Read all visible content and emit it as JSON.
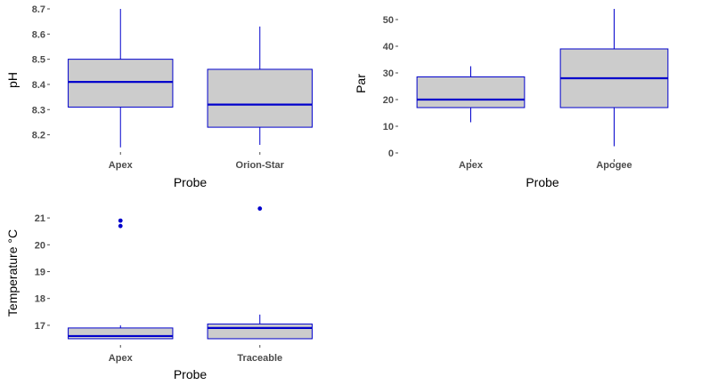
{
  "colors": {
    "box_fill": "#cccccc",
    "box_stroke": "#0000cc",
    "outlier": "#0000cc",
    "tick": "#4d4d4d",
    "label": "#000000"
  },
  "chart_data": [
    {
      "type": "box",
      "xlabel": "Probe",
      "ylabel": "pH",
      "ylim": [
        8.135,
        8.7
      ],
      "yticks": [
        8.2,
        8.3,
        8.4,
        8.5,
        8.6,
        8.7
      ],
      "ytick_labels": [
        "8.2",
        "8.3",
        "8.4",
        "8.5",
        "8.6",
        "8.7"
      ],
      "grid": false,
      "categories": [
        "Apex",
        "Orion-Star"
      ],
      "boxes": [
        {
          "min": 8.15,
          "q1": 8.31,
          "median": 8.41,
          "q3": 8.5,
          "max": 8.7,
          "outliers": []
        },
        {
          "min": 8.16,
          "q1": 8.23,
          "median": 8.32,
          "q3": 8.46,
          "max": 8.63,
          "outliers": []
        }
      ]
    },
    {
      "type": "box",
      "xlabel": "Probe",
      "ylabel": "Par",
      "ylim": [
        -2,
        54
      ],
      "yticks": [
        0,
        10,
        20,
        30,
        40,
        50
      ],
      "ytick_labels": [
        "0",
        "10",
        "20",
        "30",
        "40",
        "50"
      ],
      "grid": false,
      "categories": [
        "Apex",
        "Apogee"
      ],
      "boxes": [
        {
          "min": 11.5,
          "q1": 17,
          "median": 20,
          "q3": 28.5,
          "max": 32.5,
          "outliers": []
        },
        {
          "min": 2.5,
          "q1": 17,
          "median": 28,
          "q3": 39,
          "max": 54,
          "outliers": []
        }
      ]
    },
    {
      "type": "box",
      "xlabel": "Probe",
      "ylabel": "Temperature °C",
      "ylim": [
        16.3,
        21.6
      ],
      "yticks": [
        17,
        18,
        19,
        20,
        21
      ],
      "ytick_labels": [
        "17",
        "18",
        "19",
        "20",
        "21"
      ],
      "grid": false,
      "categories": [
        "Apex",
        "Traceable"
      ],
      "boxes": [
        {
          "min": 16.5,
          "q1": 16.5,
          "median": 16.6,
          "q3": 16.9,
          "max": 17.0,
          "outliers": [
            20.7,
            20.9
          ]
        },
        {
          "min": 16.5,
          "q1": 16.5,
          "median": 16.9,
          "q3": 17.05,
          "max": 17.4,
          "outliers": [
            21.35
          ]
        }
      ]
    }
  ]
}
